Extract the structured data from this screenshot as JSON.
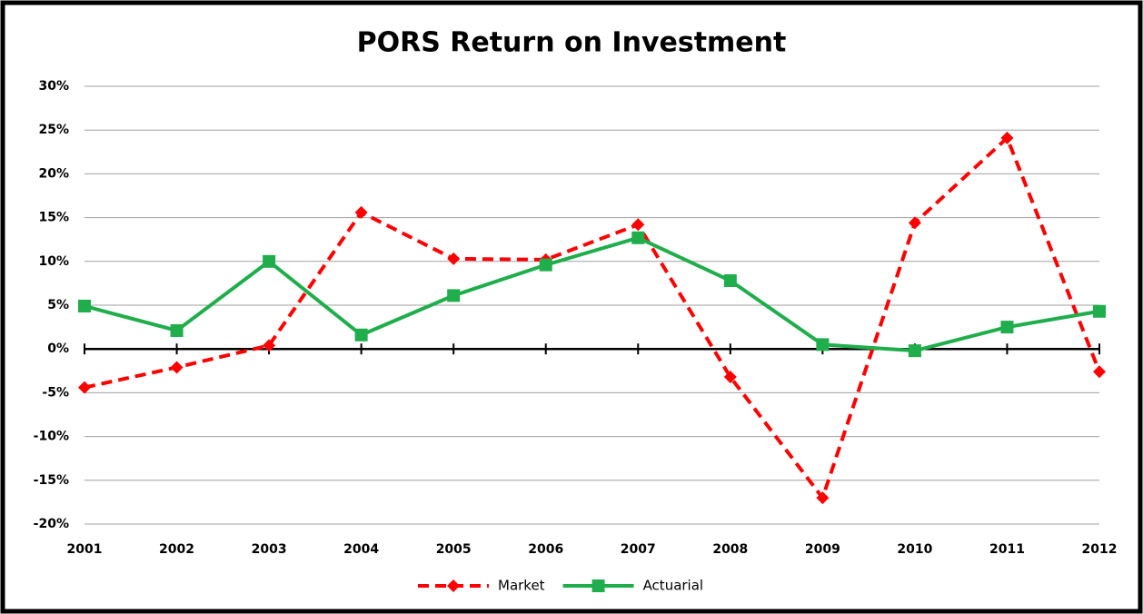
{
  "chart_data": {
    "type": "line",
    "title": "PORS Return on Investment",
    "categories": [
      "2001",
      "2002",
      "2003",
      "2004",
      "2005",
      "2006",
      "2007",
      "2008",
      "2009",
      "2010",
      "2011",
      "2012"
    ],
    "series": [
      {
        "name": "Market",
        "color": "#ff0000",
        "values": [
          -4.4,
          -2.1,
          0.4,
          15.6,
          10.3,
          10.2,
          14.2,
          -3.2,
          -17.0,
          14.4,
          24.1,
          -2.6
        ]
      },
      {
        "name": "Actuarial",
        "color": "#1fae4b",
        "values": [
          4.9,
          2.1,
          10.0,
          1.6,
          6.1,
          9.6,
          12.7,
          7.8,
          0.5,
          -0.2,
          2.5,
          4.3
        ]
      }
    ],
    "ylim": [
      -20,
      30
    ],
    "yticks": [
      {
        "value": -20,
        "label": "-20%"
      },
      {
        "value": -15,
        "label": "-15%"
      },
      {
        "value": -10,
        "label": "-10%"
      },
      {
        "value": -5,
        "label": "-5%"
      },
      {
        "value": 0,
        "label": "0%"
      },
      {
        "value": 5,
        "label": "5%"
      },
      {
        "value": 10,
        "label": "10%"
      },
      {
        "value": 15,
        "label": "15%"
      },
      {
        "value": 20,
        "label": "20%"
      },
      {
        "value": 25,
        "label": "25%"
      },
      {
        "value": 30,
        "label": "30%"
      }
    ],
    "grid": true,
    "legend": "bottom"
  }
}
